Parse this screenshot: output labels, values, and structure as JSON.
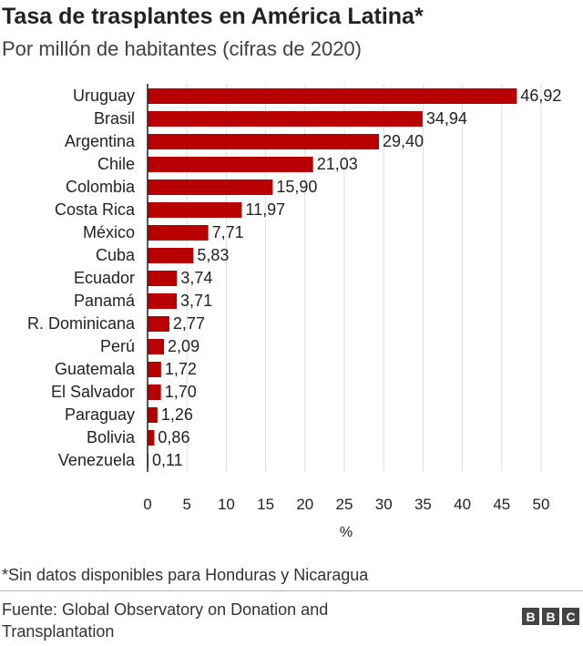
{
  "title": "Tasa de trasplantes en América Latina*",
  "subtitle": "Por millón de habitantes (cifras de 2020)",
  "note": "*Sin datos disponibles para Honduras y Nicaragua",
  "source": "Fuente: Global Observatory on Donation and Transplantation",
  "logo": [
    "B",
    "B",
    "C"
  ],
  "colors": {
    "bar": "#b80000",
    "grid": "#dddddd",
    "axis": "#222222",
    "text": "#222222"
  },
  "chart_data": {
    "type": "bar",
    "orientation": "horizontal",
    "categories": [
      "Uruguay",
      "Brasil",
      "Argentina",
      "Chile",
      "Colombia",
      "Costa Rica",
      "México",
      "Cuba",
      "Ecuador",
      "Panamá",
      "R. Dominicana",
      "Perú",
      "Guatemala",
      "El Salvador",
      "Paraguay",
      "Bolivia",
      "Venezuela"
    ],
    "values": [
      46.92,
      34.94,
      29.4,
      21.03,
      15.9,
      11.97,
      7.71,
      5.83,
      3.74,
      3.71,
      2.77,
      2.09,
      1.72,
      1.7,
      1.26,
      0.86,
      0.11
    ],
    "value_labels": [
      "46,92",
      "34,94",
      "29,40",
      "21,03",
      "15,90",
      "11,97",
      "7,71",
      "5,83",
      "3,74",
      "3,71",
      "2,77",
      "2,09",
      "1,72",
      "1,70",
      "1,26",
      "0,86",
      "0,11"
    ],
    "xticks": [
      0,
      5,
      10,
      15,
      20,
      25,
      30,
      35,
      40,
      45,
      50
    ],
    "xtick_labels": [
      "0",
      "5",
      "10",
      "15",
      "20",
      "25",
      "30",
      "35",
      "40",
      "45",
      "50"
    ],
    "xlim": [
      0,
      50
    ],
    "xlabel": "%",
    "grid": true
  }
}
